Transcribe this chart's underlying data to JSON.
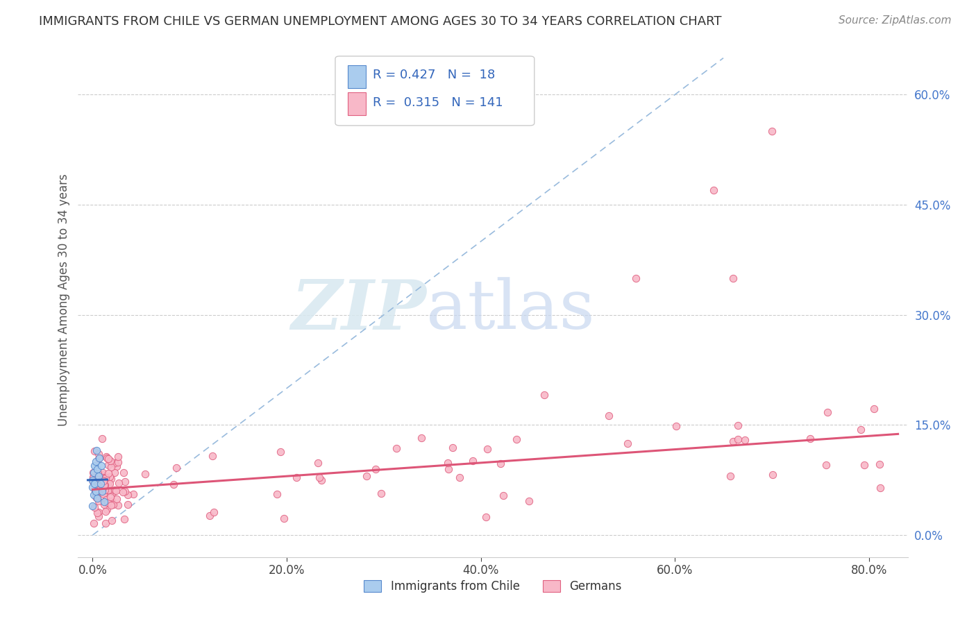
{
  "title": "IMMIGRANTS FROM CHILE VS GERMAN UNEMPLOYMENT AMONG AGES 30 TO 34 YEARS CORRELATION CHART",
  "source": "Source: ZipAtlas.com",
  "xlabel_ticks": [
    "0.0%",
    "20.0%",
    "40.0%",
    "60.0%",
    "80.0%"
  ],
  "xlabel_tick_vals": [
    0.0,
    0.2,
    0.4,
    0.6,
    0.8
  ],
  "ylabel_ticks": [
    "0.0%",
    "15.0%",
    "30.0%",
    "45.0%",
    "60.0%"
  ],
  "ylabel_tick_vals": [
    0.0,
    0.15,
    0.3,
    0.45,
    0.6
  ],
  "ylabel": "Unemployment Among Ages 30 to 34 years",
  "xlim": [
    -0.015,
    0.84
  ],
  "ylim": [
    -0.03,
    0.67
  ],
  "legend_labels": [
    "Immigrants from Chile",
    "Germans"
  ],
  "legend_r_chile": "0.427",
  "legend_n_chile": "18",
  "legend_r_german": "0.315",
  "legend_n_german": "141",
  "chile_color": "#aaccee",
  "german_color": "#f8b8c8",
  "chile_edge_color": "#5588cc",
  "german_edge_color": "#e06080",
  "chile_line_color": "#3366bb",
  "german_line_color": "#dd5577",
  "ref_line_color": "#99bbdd",
  "watermark_zip": "ZIP",
  "watermark_atlas": "atlas",
  "title_fontsize": 13,
  "source_fontsize": 11,
  "tick_fontsize": 12,
  "ylabel_fontsize": 12
}
